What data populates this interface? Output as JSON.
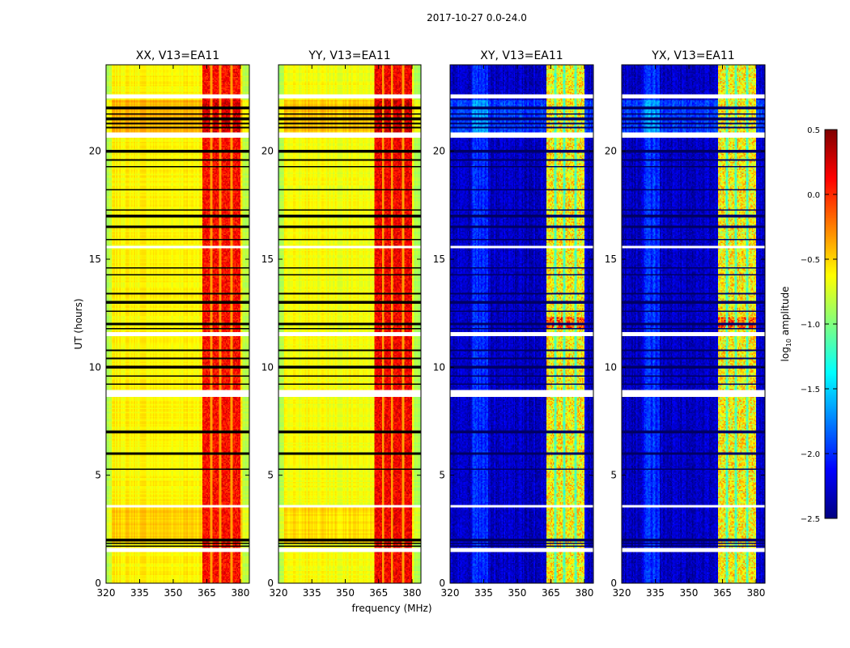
{
  "chart_data": {
    "type": "heatmap",
    "title": "2017-10-27 0.0-24.0",
    "xlabel": "frequency (MHz)",
    "ylabel": "UT (hours)",
    "xlim": [
      320,
      384
    ],
    "ylim": [
      0,
      24
    ],
    "xticks": [
      320,
      335,
      350,
      365,
      380
    ],
    "yticks": [
      0,
      5,
      10,
      15,
      20
    ],
    "colormap": "jet",
    "colorbar": {
      "label_prefix": "log",
      "label_sub": "10",
      "label_suffix": " amplitude",
      "range": [
        -2.5,
        0.5
      ],
      "ticks": [
        "0.5",
        "0.0",
        "−0.5",
        "−1.0",
        "−1.5",
        "−2.0",
        "−2.5"
      ],
      "tick_values": [
        0.5,
        0.0,
        -0.5,
        -1.0,
        -1.5,
        -2.0,
        -2.5
      ]
    },
    "panels": [
      {
        "title": "XX, V13=EA11",
        "kind": "auto",
        "baseline_log_amp": -0.6,
        "band_log_amp": 0.1
      },
      {
        "title": "YY, V13=EA11",
        "kind": "auto",
        "baseline_log_amp": -0.65,
        "band_log_amp": 0.15
      },
      {
        "title": "XY, V13=EA11",
        "kind": "cross",
        "baseline_log_amp": -2.3,
        "band_log_amp": -0.6
      },
      {
        "title": "YX, V13=EA11",
        "kind": "cross",
        "baseline_log_amp": -2.3,
        "band_log_amp": -0.6
      }
    ],
    "strong_band_mhz": [
      363,
      380
    ],
    "band_gaps_mhz": [
      367,
      371,
      376
    ],
    "flagged_hours": [
      [
        22.45,
        22.65
      ],
      [
        20.65,
        20.85
      ],
      [
        15.5,
        15.6
      ],
      [
        11.45,
        11.6
      ],
      [
        8.65,
        8.95
      ],
      [
        3.5,
        3.6
      ],
      [
        1.45,
        1.6
      ]
    ],
    "bad_rows_hours": [
      1.7,
      1.85,
      2.0,
      5.3,
      6.0,
      7.0,
      9.2,
      9.6,
      10.0,
      10.4,
      10.8,
      11.8,
      12.0,
      12.6,
      13.0,
      13.4,
      14.3,
      14.6,
      15.9,
      16.5,
      17.0,
      17.3,
      18.2,
      19.3,
      19.6,
      20.0,
      21.1,
      21.3,
      21.5,
      21.7,
      22.0
    ]
  }
}
